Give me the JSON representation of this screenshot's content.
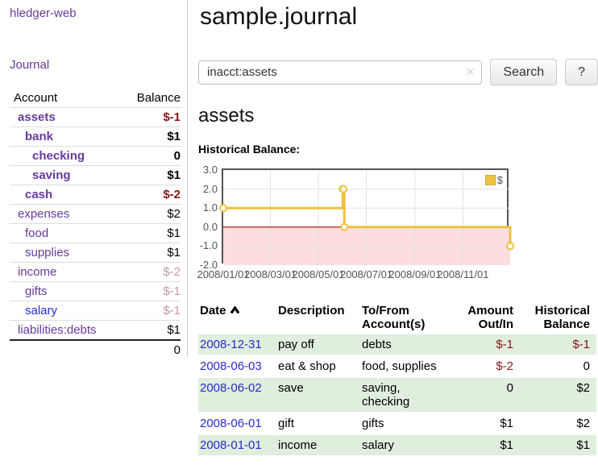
{
  "colors": {
    "purple": "#663a9e",
    "link_blue": "#2a2ad0",
    "negative_strong": "#861616",
    "negative_dim": "#c59a9a",
    "row_green": "#dfeedd",
    "chart_line": "#edc240",
    "chart_grid": "#e3e3e3",
    "chart_negative_fill": "#fcdede",
    "chart_zero_line": "#a00000"
  },
  "app_title": "hledger-web",
  "sidebar": {
    "journal_link": "Journal",
    "accounts": {
      "header_account": "Account",
      "header_balance": "Balance",
      "rows": [
        {
          "name": "assets",
          "balance": "$-1"
        },
        {
          "name": "bank",
          "balance": "$1"
        },
        {
          "name": "checking",
          "balance": "0"
        },
        {
          "name": "saving",
          "balance": "$1"
        },
        {
          "name": "cash",
          "balance": "$-2"
        },
        {
          "name": "expenses",
          "balance": "$2"
        },
        {
          "name": "food",
          "balance": "$1"
        },
        {
          "name": "supplies",
          "balance": "$1"
        },
        {
          "name": "income",
          "balance": "$-2"
        },
        {
          "name": "gifts",
          "balance": "$-1"
        },
        {
          "name": "salary",
          "balance": "$-1"
        },
        {
          "name": "liabilities:debts",
          "balance": "$1"
        }
      ],
      "total": "0"
    }
  },
  "main": {
    "page_title": "sample.journal",
    "search": {
      "value": "inacct:assets",
      "clear_icon": "✕",
      "button_label": "Search",
      "help_label": "?"
    },
    "account_title": "assets",
    "chart_heading": "Historical Balance:"
  },
  "chart_data": {
    "type": "line",
    "step": true,
    "title": "Historical Balance",
    "x_range": [
      "2008-01-01",
      "2008-12-31"
    ],
    "ylim": [
      -2,
      3
    ],
    "y_ticks": [
      3.0,
      2.0,
      1.0,
      0.0,
      -1.0,
      -2.0
    ],
    "x_ticks": [
      "2008/01/01",
      "2008/03/01",
      "2008/05/01",
      "2008/07/01",
      "2008/09/01",
      "2008/11/01"
    ],
    "series": [
      {
        "name": "$",
        "points": [
          [
            "2008-01-01",
            1
          ],
          [
            "2008-06-01",
            2
          ],
          [
            "2008-06-02",
            2
          ],
          [
            "2008-06-03",
            0
          ],
          [
            "2008-12-31",
            -1
          ]
        ]
      }
    ],
    "legend": {
      "label": "$",
      "position": "top-right"
    },
    "negative_region_shaded": true,
    "grid": true
  },
  "register": {
    "headers": {
      "date": "Date",
      "description": "Description",
      "accounts": "To/From Account(s)",
      "amount": "Amount Out/In",
      "balance": "Historical Balance"
    },
    "rows": [
      {
        "date": "2008-12-31",
        "description": "pay off",
        "accounts": "debts",
        "amount": "$-1",
        "balance": "$-1"
      },
      {
        "date": "2008-06-03",
        "description": "eat & shop",
        "accounts": "food, supplies",
        "amount": "$-2",
        "balance": "0"
      },
      {
        "date": "2008-06-02",
        "description": "save",
        "accounts": "saving, checking",
        "amount": "0",
        "balance": "$2"
      },
      {
        "date": "2008-06-01",
        "description": "gift",
        "accounts": "gifts",
        "amount": "$1",
        "balance": "$2"
      },
      {
        "date": "2008-01-01",
        "description": "income",
        "accounts": "salary",
        "amount": "$1",
        "balance": "$1"
      }
    ]
  }
}
